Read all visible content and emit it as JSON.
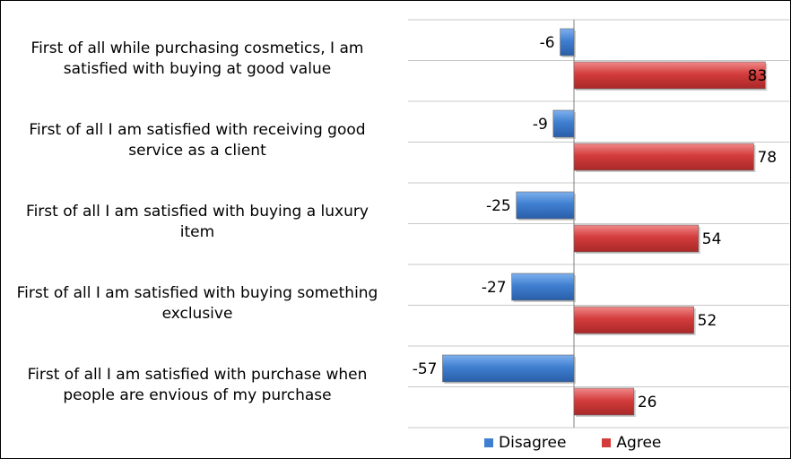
{
  "chart_data": {
    "type": "bar",
    "orientation": "horizontal",
    "categories": [
      "First of all while purchasing cosmetics, I am satisfied with buying at good value",
      "First of all I am satisfied with receiving good service as a client",
      "First of all I am satisfied with buying a luxury item",
      "First of all I am satisfied with buying something exclusive",
      "First of all I am satisfied with purchase when people are envious of my purchase"
    ],
    "category_lines": [
      [
        "First of all while purchasing cosmetics, I am",
        "satisfied with buying at good value"
      ],
      [
        "First of all I am satisfied with receiving good",
        "service as a client"
      ],
      [
        "First of all I am satisfied with buying a luxury",
        "item"
      ],
      [
        "First of all I am satisfied with buying something",
        "exclusive"
      ],
      [
        "First of all I am satisfied with purchase when",
        "people are envious of my purchase"
      ]
    ],
    "series": [
      {
        "name": "Disagree",
        "values": [
          -6,
          -9,
          -25,
          -27,
          -57
        ],
        "color": "#3f7fd0"
      },
      {
        "name": "Agree",
        "values": [
          83,
          78,
          54,
          52,
          26
        ],
        "color": "#d43c3c"
      }
    ],
    "data_labels": {
      "Disagree": [
        "-6",
        "-9",
        "-25",
        "-27",
        "-57"
      ],
      "Agree": [
        "83",
        "78",
        "54",
        "52",
        "26"
      ]
    },
    "xlim": [
      -70,
      90
    ],
    "grid": "horizontal category separators",
    "legend_position": "bottom"
  }
}
